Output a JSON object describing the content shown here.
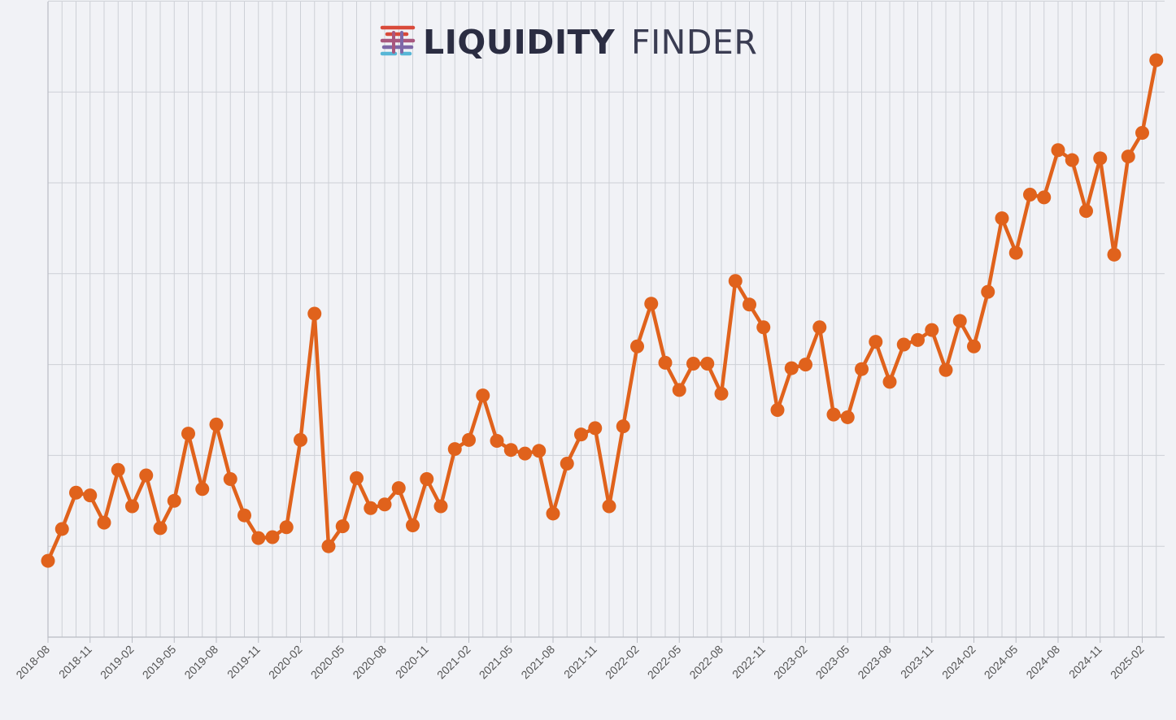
{
  "brand": {
    "name_bold": "LIQUIDITY",
    "name_light": "FINDER",
    "icon": "liquidity-finder-logo-icon",
    "colors": [
      "#d94a3a",
      "#a8577e",
      "#7e68a8",
      "#56b6d6"
    ]
  },
  "chart_data": {
    "type": "line",
    "title": "",
    "xlabel": "",
    "ylabel": "",
    "y_ticks_labeled": false,
    "ylim": [
      0,
      7
    ],
    "line_color": "#e0621c",
    "grid": true,
    "x_tick_labels": [
      "2018-08",
      "2018-11",
      "2019-02",
      "2019-05",
      "2019-08",
      "2019-11",
      "2020-02",
      "2020-05",
      "2020-08",
      "2020-11",
      "2021-02",
      "2021-05",
      "2021-08",
      "2021-11",
      "2022-02",
      "2022-05",
      "2022-08",
      "2022-11",
      "2023-02",
      "2023-05",
      "2023-08",
      "2023-11",
      "2024-02",
      "2024-05",
      "2024-08",
      "2024-11",
      "2025-02"
    ],
    "x": [
      "2018-08",
      "2018-09",
      "2018-10",
      "2018-11",
      "2018-12",
      "2019-01",
      "2019-02",
      "2019-03",
      "2019-04",
      "2019-05",
      "2019-06",
      "2019-07",
      "2019-08",
      "2019-09",
      "2019-10",
      "2019-11",
      "2019-12",
      "2020-01",
      "2020-02",
      "2020-03",
      "2020-04",
      "2020-05",
      "2020-06",
      "2020-07",
      "2020-08",
      "2020-09",
      "2020-10",
      "2020-11",
      "2020-12",
      "2021-01",
      "2021-02",
      "2021-03",
      "2021-04",
      "2021-05",
      "2021-06",
      "2021-07",
      "2021-08",
      "2021-09",
      "2021-10",
      "2021-11",
      "2021-12",
      "2022-01",
      "2022-02",
      "2022-03",
      "2022-04",
      "2022-05",
      "2022-06",
      "2022-07",
      "2022-08",
      "2022-09",
      "2022-10",
      "2022-11",
      "2022-12",
      "2023-01",
      "2023-02",
      "2023-03",
      "2023-04",
      "2023-05",
      "2023-06",
      "2023-07",
      "2023-08",
      "2023-09",
      "2023-10",
      "2023-11",
      "2023-12",
      "2024-01",
      "2024-02",
      "2024-03",
      "2024-04",
      "2024-05",
      "2024-06",
      "2024-07",
      "2024-08",
      "2024-09",
      "2024-10",
      "2024-11",
      "2024-12",
      "2025-01",
      "2025-02",
      "2025-03"
    ],
    "values": [
      0.84,
      1.19,
      1.59,
      1.56,
      1.26,
      1.84,
      1.44,
      1.78,
      1.2,
      1.5,
      2.24,
      1.63,
      2.34,
      1.74,
      1.34,
      1.09,
      1.1,
      1.21,
      2.17,
      3.56,
      1,
      1.22,
      1.75,
      1.42,
      1.46,
      1.64,
      1.23,
      1.74,
      1.44,
      2.07,
      2.17,
      2.66,
      2.16,
      2.06,
      2.02,
      2.05,
      1.36,
      1.91,
      2.23,
      2.3,
      1.44,
      2.32,
      3.2,
      3.67,
      3.02,
      2.72,
      3.01,
      3.01,
      2.68,
      3.92,
      3.66,
      3.41,
      2.5,
      2.96,
      3,
      3.41,
      2.45,
      2.42,
      2.95,
      3.25,
      2.81,
      3.22,
      3.27,
      3.38,
      2.94,
      3.48,
      3.2,
      3.8,
      4.61,
      4.23,
      4.87,
      4.84,
      5.36,
      5.25,
      4.69,
      5.27,
      4.21,
      5.29,
      5.55,
      6.35
    ]
  }
}
